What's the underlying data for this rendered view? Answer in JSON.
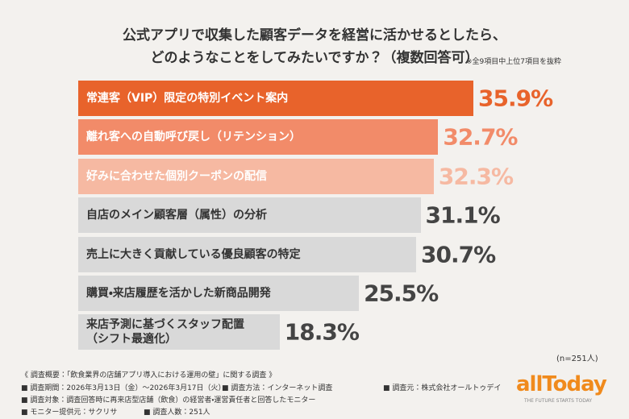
{
  "chart_data": {
    "type": "bar",
    "orientation": "horizontal",
    "title": "公式アプリで収集した顧客データを経営に活かせるとしたら、\nどのようなことをしてみたいですか？（複数回答可）",
    "subtitle": "※全9項目中上位7項目を抜粋",
    "categories": [
      "常連客（VIP）限定の特別イベント案内",
      "離れ客への自動呼び戻し（リテンション）",
      "好みに合わせた個別クーポンの配信",
      "自店のメイン顧客層（属性）の分析",
      "売上に大きく貢献している優良顧客の特定",
      "購買・来店履歴を活かした新商品開発",
      "来店予測に基づくスタッフ配置\n（シフト最適化）"
    ],
    "values": [
      35.9,
      32.7,
      32.3,
      31.1,
      30.7,
      25.5,
      18.3
    ],
    "value_labels": [
      "35.9%",
      "32.7%",
      "32.3%",
      "31.1%",
      "30.7%",
      "25.5%",
      "18.3%"
    ],
    "colors": [
      "#e8632b",
      "#f28b69",
      "#f6b9a2",
      "#d9d9d9",
      "#d9d9d9",
      "#d9d9d9",
      "#d9d9d9"
    ],
    "label_colors": [
      "#ffffff",
      "#ffffff",
      "#ffffff",
      "#333333",
      "#333333",
      "#333333",
      "#333333"
    ],
    "value_label_colors": [
      "#e8632b",
      "#f28b69",
      "#f6b9a2",
      "#444444",
      "#444444",
      "#444444",
      "#444444"
    ],
    "sample_note": "(n=251人)"
  },
  "footer": {
    "heading": "《 調査概要：「飲食業界の店舗アプリ導入における運用の壁」に関する調査 》",
    "items": [
      "■ 調査期間：2026年3月13日（金）～2026年3月17日（火）",
      "■ 調査方法：インターネット調査",
      "■ 調査元：株式会社オールトゥデイ",
      "■ 調査対象：調査回答時に再来店型店舗（飲食）の経営者・運営責任者と回答したモニター",
      "■ モニター提供元：サクリサ",
      "■ 調査人数：251人"
    ],
    "logo": "allToday",
    "tagline": "THE FUTURE STARTS TODAY"
  }
}
